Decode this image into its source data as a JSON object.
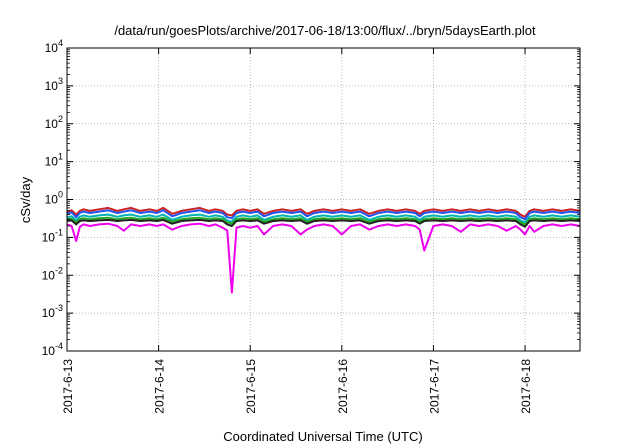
{
  "chart_data": {
    "type": "line",
    "title": "/data/run/goesPlots/archive/2017-06-18/13:00/flux/../bryn/5daysEarth.plot",
    "xlabel": "Coordinated Universal Time (UTC)",
    "ylabel": "cSv/day",
    "y_scale": "log",
    "ylim": [
      0.0001,
      10000
    ],
    "xlim": [
      0,
      5.6
    ],
    "grid": true,
    "colors": [
      "#cc2222",
      "#2255ee",
      "#00b2b2",
      "#22aa22",
      "#222222",
      "#ee00ee"
    ],
    "x_ticks": [
      {
        "pos": 0,
        "label": "2017-6-13"
      },
      {
        "pos": 1,
        "label": "2017-6-14"
      },
      {
        "pos": 2,
        "label": "2017-6-15"
      },
      {
        "pos": 3,
        "label": "2017-6-16"
      },
      {
        "pos": 4,
        "label": "2017-6-17"
      },
      {
        "pos": 5,
        "label": "2017-6-18"
      }
    ],
    "y_ticks": [
      {
        "exp": "4",
        "value": 10000
      },
      {
        "exp": "3",
        "value": 1000
      },
      {
        "exp": "2",
        "value": 100
      },
      {
        "exp": "1",
        "value": 10
      },
      {
        "exp": "0",
        "value": 1
      },
      {
        "exp": "-1",
        "value": 0.1
      },
      {
        "exp": "-2",
        "value": 0.01
      },
      {
        "exp": "-3",
        "value": 0.001
      },
      {
        "exp": "-4",
        "value": 0.0001
      }
    ],
    "x": [
      0,
      0.05,
      0.1,
      0.14,
      0.18,
      0.25,
      0.35,
      0.45,
      0.55,
      0.62,
      0.7,
      0.8,
      0.9,
      0.98,
      1.05,
      1.15,
      1.25,
      1.35,
      1.45,
      1.55,
      1.62,
      1.7,
      1.75,
      1.8,
      1.85,
      1.92,
      2.0,
      2.08,
      2.15,
      2.25,
      2.35,
      2.45,
      2.55,
      2.62,
      2.7,
      2.8,
      2.9,
      3.0,
      3.1,
      3.2,
      3.3,
      3.4,
      3.5,
      3.6,
      3.7,
      3.8,
      3.85,
      3.9,
      4.0,
      4.1,
      4.2,
      4.3,
      4.4,
      4.5,
      4.6,
      4.7,
      4.8,
      4.9,
      4.95,
      5.0,
      5.05,
      5.1,
      5.2,
      5.3,
      5.4,
      5.5,
      5.6
    ],
    "series": [
      {
        "values": [
          0.48,
          0.52,
          0.4,
          0.5,
          0.55,
          0.5,
          0.55,
          0.6,
          0.5,
          0.55,
          0.6,
          0.5,
          0.55,
          0.5,
          0.6,
          0.42,
          0.5,
          0.55,
          0.6,
          0.5,
          0.55,
          0.5,
          0.4,
          0.38,
          0.5,
          0.55,
          0.5,
          0.55,
          0.42,
          0.5,
          0.55,
          0.5,
          0.55,
          0.42,
          0.5,
          0.55,
          0.5,
          0.55,
          0.5,
          0.55,
          0.42,
          0.5,
          0.55,
          0.5,
          0.55,
          0.5,
          0.42,
          0.5,
          0.55,
          0.5,
          0.55,
          0.5,
          0.55,
          0.5,
          0.55,
          0.5,
          0.55,
          0.5,
          0.4,
          0.35,
          0.5,
          0.55,
          0.5,
          0.55,
          0.5,
          0.55,
          0.5
        ]
      },
      {
        "values": [
          0.42,
          0.46,
          0.34,
          0.44,
          0.48,
          0.44,
          0.48,
          0.52,
          0.44,
          0.48,
          0.52,
          0.44,
          0.48,
          0.44,
          0.52,
          0.36,
          0.44,
          0.48,
          0.52,
          0.44,
          0.48,
          0.44,
          0.34,
          0.32,
          0.44,
          0.48,
          0.44,
          0.48,
          0.36,
          0.44,
          0.48,
          0.44,
          0.48,
          0.36,
          0.44,
          0.48,
          0.44,
          0.48,
          0.44,
          0.48,
          0.36,
          0.44,
          0.48,
          0.44,
          0.48,
          0.44,
          0.36,
          0.44,
          0.48,
          0.44,
          0.48,
          0.44,
          0.48,
          0.44,
          0.48,
          0.44,
          0.48,
          0.44,
          0.34,
          0.3,
          0.44,
          0.48,
          0.44,
          0.48,
          0.44,
          0.48,
          0.44
        ]
      },
      {
        "values": [
          0.34,
          0.36,
          0.28,
          0.35,
          0.38,
          0.35,
          0.38,
          0.4,
          0.35,
          0.38,
          0.4,
          0.35,
          0.38,
          0.35,
          0.4,
          0.29,
          0.35,
          0.38,
          0.4,
          0.35,
          0.38,
          0.35,
          0.28,
          0.26,
          0.35,
          0.38,
          0.35,
          0.38,
          0.29,
          0.35,
          0.38,
          0.35,
          0.38,
          0.29,
          0.35,
          0.38,
          0.35,
          0.38,
          0.35,
          0.38,
          0.29,
          0.35,
          0.38,
          0.35,
          0.38,
          0.35,
          0.29,
          0.35,
          0.38,
          0.35,
          0.38,
          0.35,
          0.38,
          0.35,
          0.38,
          0.35,
          0.38,
          0.35,
          0.28,
          0.25,
          0.35,
          0.38,
          0.35,
          0.38,
          0.35,
          0.38,
          0.35
        ]
      },
      {
        "values": [
          0.3,
          0.31,
          0.25,
          0.3,
          0.32,
          0.3,
          0.32,
          0.33,
          0.3,
          0.32,
          0.33,
          0.3,
          0.32,
          0.3,
          0.33,
          0.26,
          0.3,
          0.32,
          0.33,
          0.3,
          0.32,
          0.3,
          0.25,
          0.23,
          0.3,
          0.32,
          0.3,
          0.32,
          0.26,
          0.3,
          0.32,
          0.3,
          0.32,
          0.26,
          0.3,
          0.32,
          0.3,
          0.32,
          0.3,
          0.32,
          0.26,
          0.3,
          0.32,
          0.3,
          0.32,
          0.3,
          0.26,
          0.3,
          0.32,
          0.3,
          0.32,
          0.3,
          0.32,
          0.3,
          0.32,
          0.3,
          0.32,
          0.3,
          0.25,
          0.22,
          0.3,
          0.32,
          0.3,
          0.32,
          0.3,
          0.32,
          0.3
        ]
      },
      {
        "values": [
          0.27,
          0.28,
          0.22,
          0.27,
          0.28,
          0.27,
          0.28,
          0.29,
          0.27,
          0.28,
          0.29,
          0.27,
          0.28,
          0.27,
          0.29,
          0.23,
          0.27,
          0.28,
          0.29,
          0.27,
          0.28,
          0.27,
          0.22,
          0.2,
          0.27,
          0.28,
          0.27,
          0.28,
          0.23,
          0.27,
          0.28,
          0.27,
          0.28,
          0.23,
          0.27,
          0.28,
          0.27,
          0.28,
          0.27,
          0.28,
          0.23,
          0.27,
          0.28,
          0.27,
          0.28,
          0.27,
          0.23,
          0.27,
          0.28,
          0.27,
          0.28,
          0.27,
          0.28,
          0.27,
          0.28,
          0.27,
          0.28,
          0.27,
          0.22,
          0.19,
          0.27,
          0.28,
          0.27,
          0.28,
          0.27,
          0.28,
          0.27
        ]
      },
      {
        "values": [
          0.22,
          0.2,
          0.08,
          0.19,
          0.22,
          0.2,
          0.22,
          0.23,
          0.2,
          0.15,
          0.22,
          0.2,
          0.22,
          0.2,
          0.22,
          0.16,
          0.2,
          0.22,
          0.23,
          0.2,
          0.22,
          0.18,
          0.15,
          0.0035,
          0.18,
          0.2,
          0.18,
          0.2,
          0.12,
          0.2,
          0.22,
          0.2,
          0.12,
          0.16,
          0.2,
          0.22,
          0.2,
          0.12,
          0.2,
          0.22,
          0.16,
          0.2,
          0.22,
          0.2,
          0.22,
          0.2,
          0.16,
          0.045,
          0.2,
          0.22,
          0.2,
          0.14,
          0.22,
          0.2,
          0.22,
          0.2,
          0.15,
          0.2,
          0.16,
          0.12,
          0.2,
          0.14,
          0.2,
          0.22,
          0.2,
          0.22,
          0.2
        ]
      }
    ]
  }
}
